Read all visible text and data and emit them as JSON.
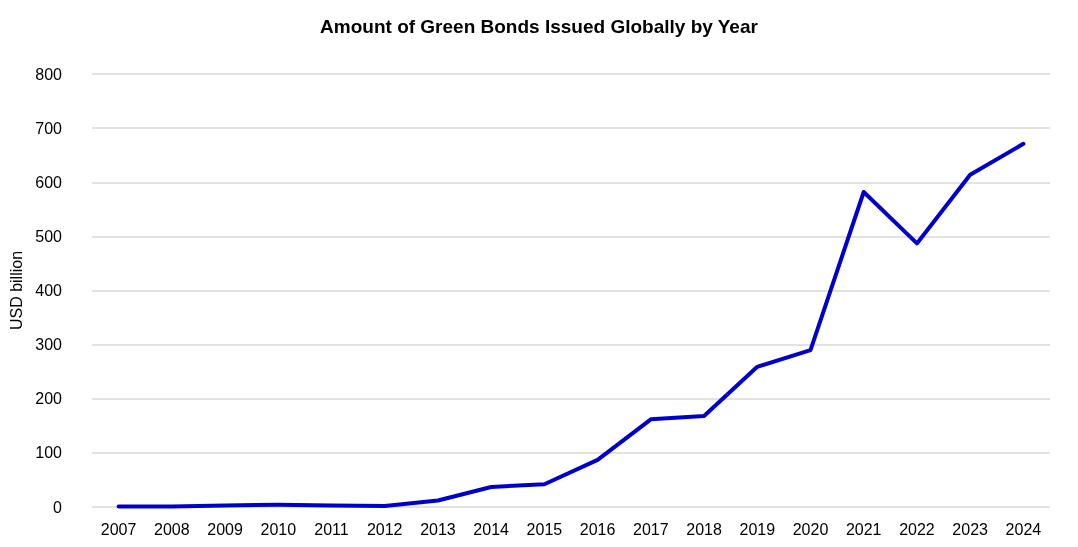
{
  "chart_data": {
    "type": "line",
    "title": "Amount of Green Bonds Issued Globally by Year",
    "ylabel": "USD billion",
    "categories": [
      "2007",
      "2008",
      "2009",
      "2010",
      "2011",
      "2012",
      "2013",
      "2014",
      "2015",
      "2016",
      "2017",
      "2018",
      "2019",
      "2020",
      "2021",
      "2022",
      "2023",
      "2024"
    ],
    "series": [
      {
        "color": "#0000cc",
        "values": [
          1,
          1,
          3,
          4,
          3,
          2,
          12,
          37,
          42,
          87,
          162,
          168,
          259,
          290,
          582,
          487,
          614,
          671
        ]
      }
    ],
    "ylim": [
      0,
      800
    ],
    "yticks": [
      0,
      100,
      200,
      300,
      400,
      500,
      600,
      700,
      800
    ],
    "grid": "y",
    "marker": "none",
    "line_style": "solid"
  }
}
